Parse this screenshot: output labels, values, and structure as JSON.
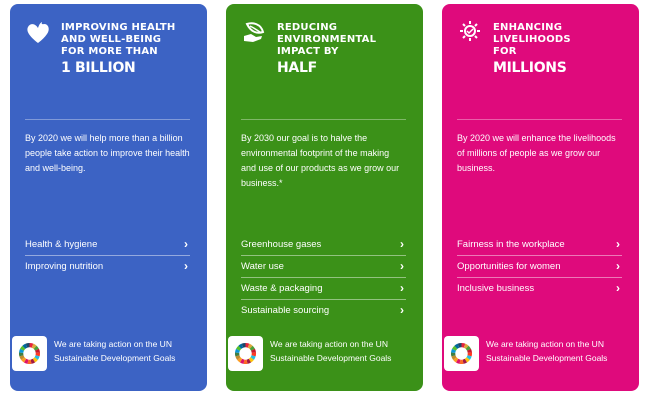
{
  "cards": [
    {
      "icon": "heart-icon",
      "color": "#3c63c4",
      "title_lines": [
        "IMPROVING HEALTH",
        "AND WELL-BEING",
        "FOR MORE THAN"
      ],
      "title_emphasis": "1 BILLION",
      "description": "By 2020 we will help more than a billion people take action to improve their health and well-being.",
      "links": [
        {
          "label": "Health & hygiene",
          "arrow": "›"
        },
        {
          "label": "Improving nutrition",
          "arrow": "›"
        }
      ],
      "sdg_text": "We are taking action on the UN Sustainable Development Goals"
    },
    {
      "icon": "leaf-hand-icon",
      "color": "#3b9118",
      "title_lines": [
        "REDUCING",
        "ENVIRONMENTAL",
        "IMPACT BY"
      ],
      "title_emphasis": "HALF",
      "description": "By 2030 our goal is to halve the environmental footprint of the making and use of our products as we grow our business.*",
      "links": [
        {
          "label": "Greenhouse gases",
          "arrow": "›"
        },
        {
          "label": "Water use",
          "arrow": "›"
        },
        {
          "label": "Waste & packaging",
          "arrow": "›"
        },
        {
          "label": "Sustainable sourcing",
          "arrow": "›"
        }
      ],
      "sdg_text": "We are taking action on the UN Sustainable Development Goals"
    },
    {
      "icon": "sun-hand-icon",
      "color": "#df0a7c",
      "title_lines": [
        "ENHANCING",
        "LIVELIHOODS",
        "FOR"
      ],
      "title_emphasis": "MILLIONS",
      "description": "By 2020 we will enhance the livelihoods of millions of people as we grow our business.",
      "links": [
        {
          "label": "Fairness in the workplace",
          "arrow": "›"
        },
        {
          "label": "Opportunities for women",
          "arrow": "›"
        },
        {
          "label": "Inclusive business",
          "arrow": "›"
        }
      ],
      "sdg_text": "We are taking action on the UN Sustainable Development Goals"
    }
  ],
  "sdg_wheel_colors": [
    "#e5243b",
    "#dda63a",
    "#4c9f38",
    "#c5192d",
    "#ff3a21",
    "#26bde2",
    "#fcc30b",
    "#a21942",
    "#fd6925",
    "#dd1367",
    "#fd9d24",
    "#bf8b2e",
    "#3f7e44",
    "#0a97d9",
    "#56c02b",
    "#00689d",
    "#19486a"
  ]
}
